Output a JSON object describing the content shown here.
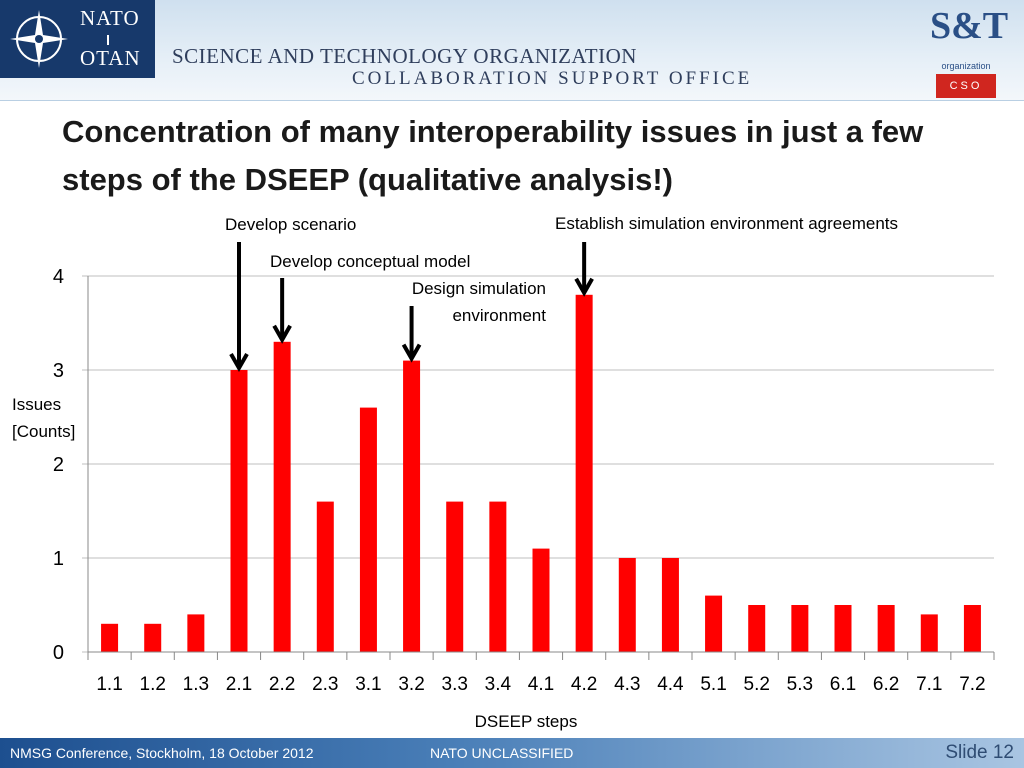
{
  "header": {
    "nato_word_1": "NATO",
    "nato_word_2": "OTAN",
    "org_name": "SCIENCE AND TECHNOLOGY ORGANIZATION",
    "org_sub": "COLLABORATION SUPPORT OFFICE",
    "st_logo_text": "S&T",
    "st_logo_org": "organization",
    "st_logo_cso": "CSO",
    "icons": [
      "nato-compass-icon"
    ]
  },
  "slide": {
    "title": "Concentration of many interoperability issues in just a few steps of the DSEEP (qualitative analysis!)"
  },
  "chart_data": {
    "type": "bar",
    "categories": [
      "1.1",
      "1.2",
      "1.3",
      "2.1",
      "2.2",
      "2.3",
      "3.1",
      "3.2",
      "3.3",
      "3.4",
      "4.1",
      "4.2",
      "4.3",
      "4.4",
      "5.1",
      "5.2",
      "5.3",
      "6.1",
      "6.2",
      "7.1",
      "7.2"
    ],
    "values": [
      0.3,
      0.3,
      0.4,
      3.0,
      3.3,
      1.6,
      2.6,
      3.1,
      1.6,
      1.6,
      1.1,
      3.8,
      1.0,
      1.0,
      0.6,
      0.5,
      0.5,
      0.5,
      0.5,
      0.4,
      0.5
    ],
    "ylim": [
      0,
      4
    ],
    "yticks": [
      "0",
      "1",
      "2",
      "3",
      "4"
    ],
    "xlabel": "DSEEP steps",
    "ylabel_line1": "Issues",
    "ylabel_line2": "[Counts]",
    "grid": true,
    "bar_color": "#ff0000",
    "annotations": [
      {
        "target": "2.1",
        "lines": [
          "Develop scenario"
        ]
      },
      {
        "target": "2.2",
        "lines": [
          "Develop conceptual model"
        ]
      },
      {
        "target": "3.2",
        "lines": [
          "Design simulation",
          "environment"
        ]
      },
      {
        "target": "4.2",
        "lines": [
          "Establish simulation environment agreements"
        ]
      }
    ]
  },
  "footer": {
    "left": "NMSG Conference, Stockholm, 18 October 2012",
    "middle": "NATO UNCLASSIFIED",
    "right": "Slide 12"
  }
}
